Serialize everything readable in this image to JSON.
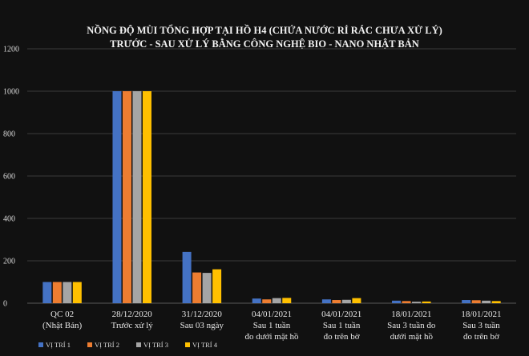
{
  "chart_data": {
    "type": "bar",
    "title_lines": [
      "NỒNG ĐỘ MÙI TỔNG HỢP TẠI HỒ H4 (CHỨA NƯỚC RỈ RÁC CHƯA XỬ LÝ)",
      "TRƯỚC - SAU XỬ LÝ BẰNG CÔNG NGHỆ BIO -  NANO NHẬT BẢN"
    ],
    "xlabel": "",
    "ylabel": "",
    "ylim": [
      0,
      1200
    ],
    "yticks": [
      0,
      200,
      400,
      600,
      800,
      1000,
      1200
    ],
    "grid": true,
    "legend_position": "bottom-left",
    "categories": [
      [
        "QC 02",
        "(Nhật Bản)"
      ],
      [
        "28/12/2020",
        "Trước xử lý"
      ],
      [
        "31/12/2020",
        "Sau 03 ngày"
      ],
      [
        "04/01/2021",
        "Sau 1 tuần",
        "đo dưới mặt hồ"
      ],
      [
        "04/01/2021",
        "Sau 1 tuần",
        "đo trên bờ"
      ],
      [
        "18/01/2021",
        "Sau 3 tuần đo",
        "dưới mặt hồ"
      ],
      [
        "18/01/2021",
        "Sau 3 tuần",
        "đo trên bờ"
      ]
    ],
    "series": [
      {
        "name": "VỊ TRÍ 1",
        "color": "#4472c4",
        "values": [
          100,
          1000,
          242,
          22,
          18,
          12,
          15
        ]
      },
      {
        "name": "VỊ TRÍ 2",
        "color": "#ed7d31",
        "values": [
          100,
          1000,
          145,
          18,
          15,
          10,
          14
        ]
      },
      {
        "name": "VỊ TRÍ 3",
        "color": "#a5a5a5",
        "values": [
          100,
          1000,
          143,
          24,
          16,
          7,
          12
        ]
      },
      {
        "name": "VỊ TRÍ 4",
        "color": "#ffc000",
        "values": [
          100,
          1000,
          160,
          25,
          24,
          8,
          10
        ]
      }
    ]
  }
}
